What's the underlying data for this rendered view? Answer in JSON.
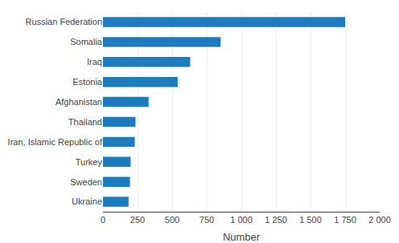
{
  "chart_data": {
    "type": "bar",
    "orientation": "horizontal",
    "categories": [
      "Ukraine",
      "Sweden",
      "Turkey",
      "Iran, Islamic Republic of",
      "Thailand",
      "Afghanistan",
      "Estonia",
      "Iraq",
      "Somalia",
      "Russian Federation"
    ],
    "values": [
      185,
      195,
      200,
      230,
      235,
      330,
      540,
      630,
      850,
      1750
    ],
    "color": "#1d7bbf",
    "xlabel": "Number",
    "xlim": [
      0,
      2000
    ],
    "xticks": [
      0,
      250,
      500,
      750,
      {
        "value": 1000,
        "label": "1 000"
      },
      {
        "value": 1250,
        "label": "1 250"
      },
      {
        "value": 1500,
        "label": "1 500"
      },
      {
        "value": 1750,
        "label": "1 750"
      },
      {
        "value": 2000,
        "label": "2 000"
      }
    ],
    "grid": true
  }
}
